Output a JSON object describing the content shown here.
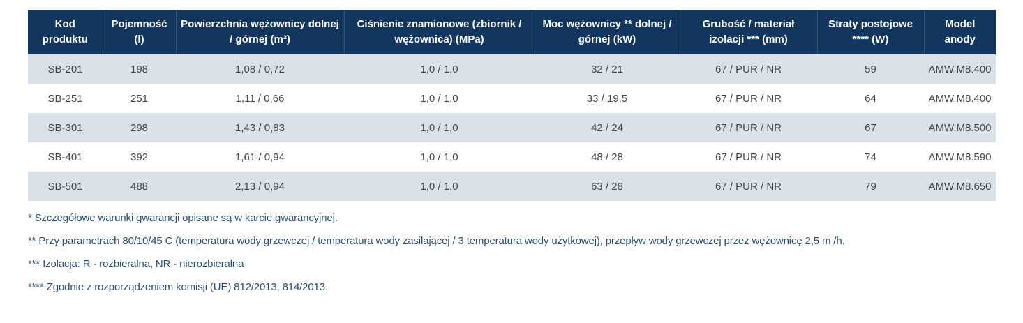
{
  "table": {
    "columns": [
      "Kod\nproduktu",
      "Pojemność\n(l)",
      "Powierzchnia wężownicy dolnej\n/ górnej (m²)",
      "Ciśnienie znamionowe (zbiornik /\nwężownica) (MPa)",
      "Moc wężownicy ** dolnej /\ngórnej (kW)",
      "Grubość / materiał\nizolacji *** (mm)",
      "Straty postojowe\n**** (W)",
      "Model\nanody"
    ],
    "rows": [
      [
        "SB-201",
        "198",
        "1,08 / 0,72",
        "1,0 / 1,0",
        "32 / 21",
        "67 / PUR / NR",
        "59",
        "AMW.M8.400"
      ],
      [
        "SB-251",
        "251",
        "1,11 / 0,66",
        "1,0 / 1,0",
        "33 / 19,5",
        "67 / PUR / NR",
        "64",
        "AMW.M8.400"
      ],
      [
        "SB-301",
        "298",
        "1,43 / 0,83",
        "1,0 / 1,0",
        "42 / 24",
        "67 / PUR / NR",
        "67",
        "AMW.M8.500"
      ],
      [
        "SB-401",
        "392",
        "1,61 / 0,94",
        "1,0 / 1,0",
        "48 / 28",
        "67 / PUR / NR",
        "74",
        "AMW.M8.590"
      ],
      [
        "SB-501",
        "488",
        "2,13 / 0,94",
        "1,0 / 1,0",
        "63 / 28",
        "67 / PUR / NR",
        "79",
        "AMW.M8.650"
      ]
    ]
  },
  "footnotes": [
    "* Szczegółowe warunki gwarancji opisane są w karcie gwarancyjnej.",
    "** Przy parametrach 80/10/45 C (temperatura wody grzewczej / temperatura wody zasilającej / 3 temperatura wody użytkowej), przepływ wody grzewczej przez wężownicę 2,5 m /h.",
    "*** Izolacja: R - rozbieralna, NR - nierozbieralna",
    "**** Zgodnie z rozporządzeniem komisji (UE) 812/2013, 814/2013."
  ],
  "colors": {
    "header_bg": "#12365e",
    "row_alt_bg": "#dae1e9",
    "cell_text": "#40484f",
    "footnote_text": "#2e4d6e"
  }
}
